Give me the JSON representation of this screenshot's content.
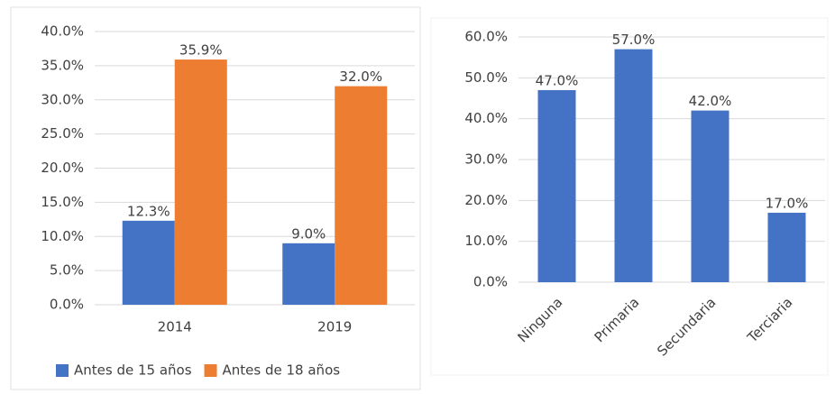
{
  "chart_data": [
    {
      "type": "bar",
      "categories": [
        "2014",
        "2019"
      ],
      "series": [
        {
          "name": "Antes de 15 años",
          "color": "#4472c4",
          "values": [
            12.3,
            9.0
          ],
          "value_labels": [
            "12.3%",
            "9.0%"
          ]
        },
        {
          "name": "Antes de 18 años",
          "color": "#ed7d31",
          "values": [
            35.9,
            32.0
          ],
          "value_labels": [
            "35.9%",
            "32.0%"
          ]
        }
      ],
      "ylim": [
        0,
        40
      ],
      "yticks": [
        {
          "value": 0,
          "label": "0.0%"
        },
        {
          "value": 5,
          "label": "5.0%"
        },
        {
          "value": 10,
          "label": "10.0%"
        },
        {
          "value": 15,
          "label": "15.0%"
        },
        {
          "value": 20,
          "label": "20.0%"
        },
        {
          "value": 25,
          "label": "25.0%"
        },
        {
          "value": 30,
          "label": "30.0%"
        },
        {
          "value": 35,
          "label": "35.0%"
        },
        {
          "value": 40,
          "label": "40.0%"
        }
      ],
      "grid": true,
      "legend": "bottom"
    },
    {
      "type": "bar",
      "categories": [
        "Ninguna",
        "Primaria",
        "Secundaria",
        "Terciaria"
      ],
      "values": [
        47,
        57,
        42,
        17
      ],
      "value_labels": [
        "47.0%",
        "57.0%",
        "42.0%",
        "17.0%"
      ],
      "color": "#4472c4",
      "ylim": [
        0,
        60
      ],
      "yticks": [
        {
          "value": 0,
          "label": "0.0%"
        },
        {
          "value": 10,
          "label": "10.0%"
        },
        {
          "value": 20,
          "label": "20.0%"
        },
        {
          "value": 30,
          "label": "30.0%"
        },
        {
          "value": 40,
          "label": "40.0%"
        },
        {
          "value": 50,
          "label": "50.0%"
        },
        {
          "value": 60,
          "label": "60.0%"
        }
      ],
      "grid": true
    }
  ]
}
